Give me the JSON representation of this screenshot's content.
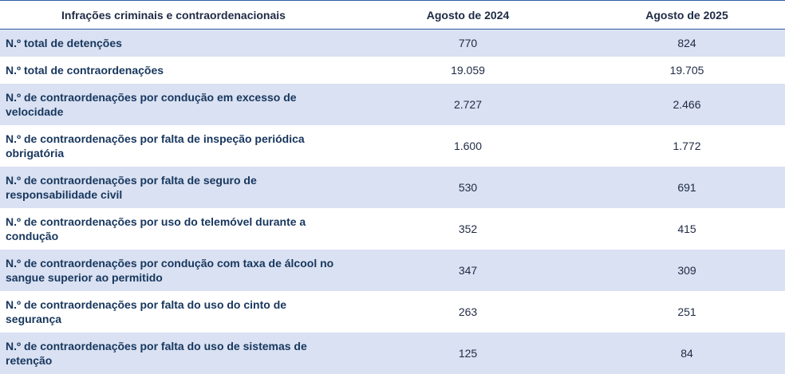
{
  "table": {
    "headers": [
      "Infrações criminais e contraordenacionais",
      "Agosto de 2024",
      "Agosto de 2025"
    ],
    "rows": [
      {
        "label": "N.º total de detenções",
        "v2024": "770",
        "v2025": "824"
      },
      {
        "label": "N.º total de contraordenações",
        "v2024": "19.059",
        "v2025": "19.705"
      },
      {
        "label": "N.º de contraordenações por condução em excesso de velocidade",
        "v2024": "2.727",
        "v2025": "2.466"
      },
      {
        "label": "N.º de contraordenações por falta de inspeção periódica obrigatória",
        "v2024": "1.600",
        "v2025": "1.772"
      },
      {
        "label": "N.º de contraordenações por falta de seguro de responsabilidade civil",
        "v2024": "530",
        "v2025": "691"
      },
      {
        "label": "N.º de contraordenações por uso do telemóvel durante a condução",
        "v2024": "352",
        "v2025": "415"
      },
      {
        "label": "N.º de contraordenações por condução com taxa de álcool no sangue superior ao permitido",
        "v2024": "347",
        "v2025": "309"
      },
      {
        "label": "N.º de contraordenações por falta do uso do cinto de segurança",
        "v2024": "263",
        "v2025": "251"
      },
      {
        "label": "N.º de contraordenações por falta do uso de sistemas de retenção",
        "v2024": "125",
        "v2025": "84"
      }
    ]
  },
  "colors": {
    "header_rule": "#2f5da6",
    "band": "#d9e1f2",
    "label_text": "#17365d"
  }
}
